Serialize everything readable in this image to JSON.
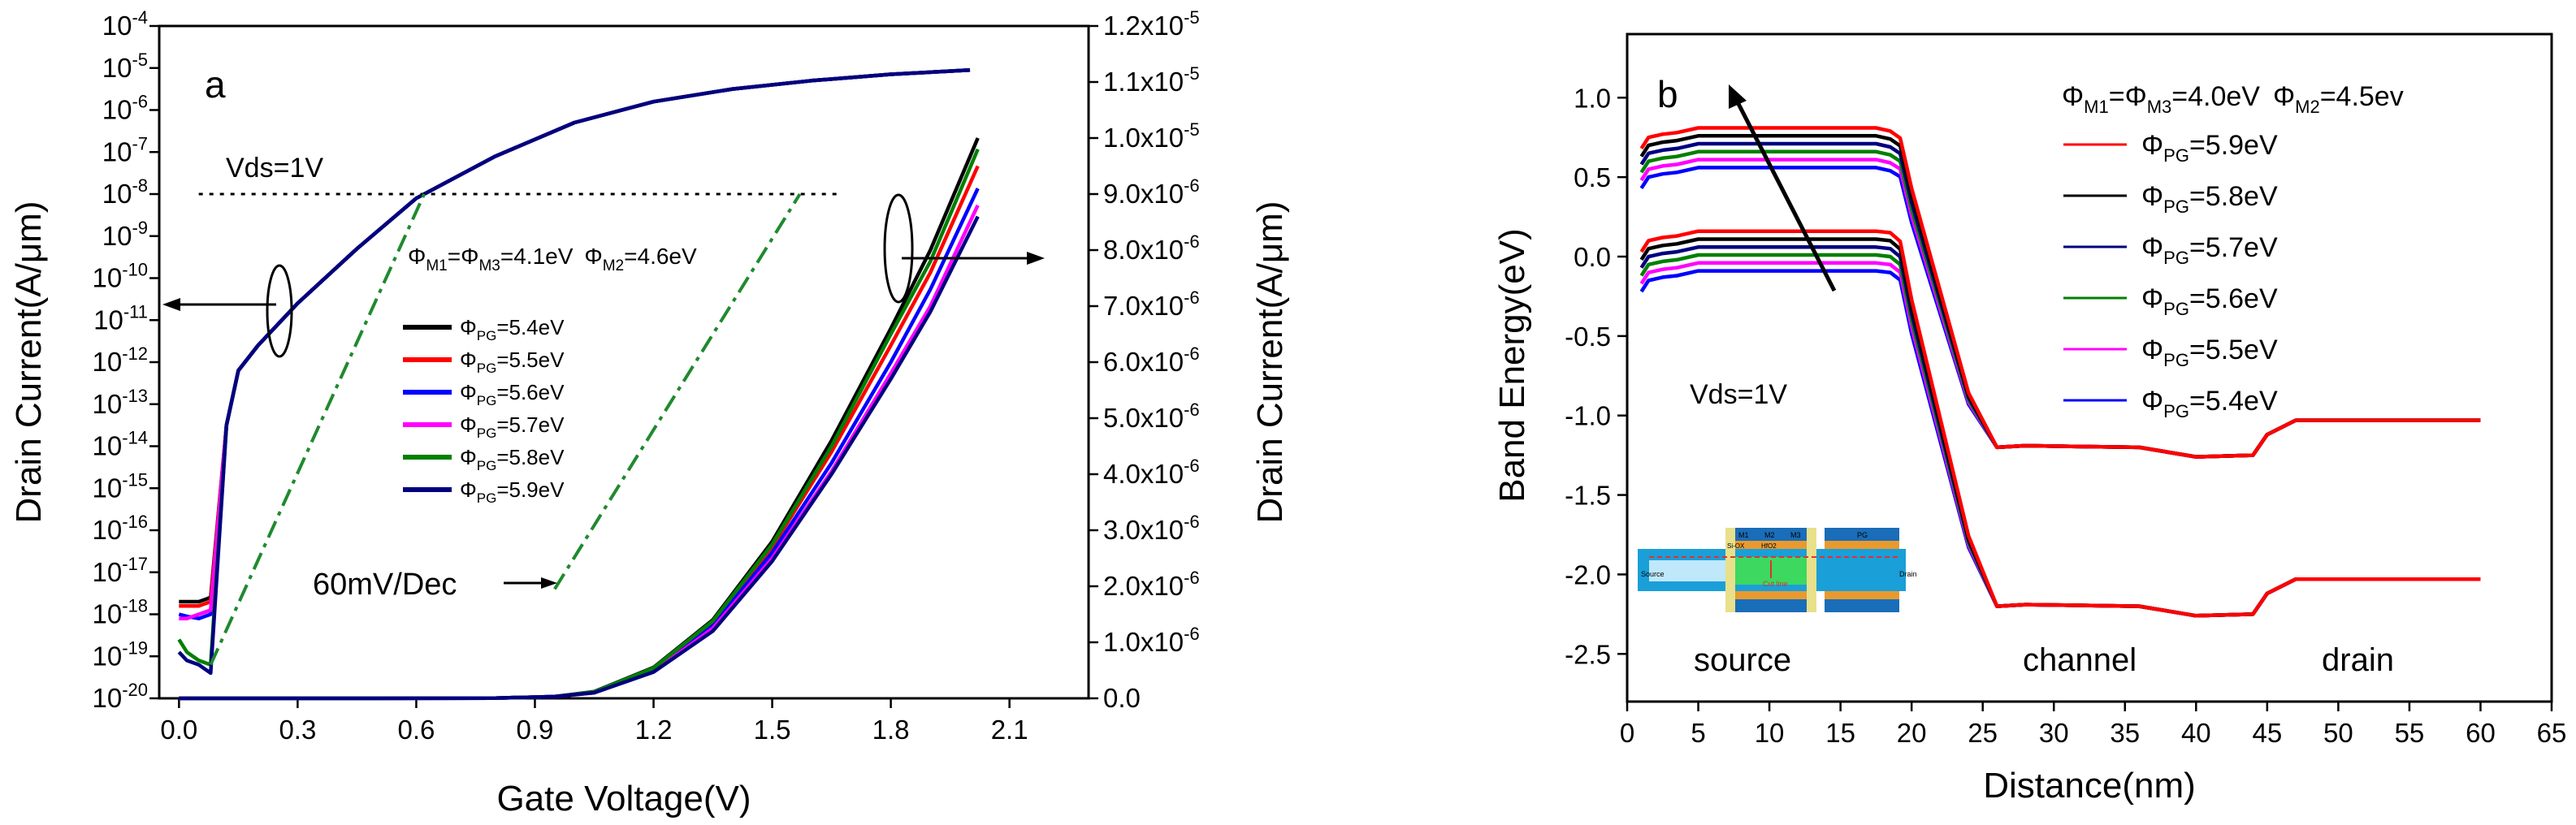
{
  "chart_data": [
    {
      "panel": "a",
      "type": "line",
      "xlabel": "Gate Voltage(V)",
      "ylabel_left": "Drain Current(A/μm)",
      "ylabel_right": "Drain Current(A/μm)",
      "xlim": [
        -0.05,
        2.3
      ],
      "x_ticks": [
        "0.0",
        "0.3",
        "0.6",
        "0.9",
        "1.2",
        "1.5",
        "1.8",
        "2.1"
      ],
      "left_axis_scale": "log",
      "left_ylim_exponent": [
        -20,
        -4
      ],
      "left_tick_base": "10",
      "left_tick_exponents": [
        "-20",
        "-19",
        "-18",
        "-17",
        "-16",
        "-15",
        "-14",
        "-13",
        "-12",
        "-11",
        "-10",
        "-9",
        "-8",
        "-7",
        "-6",
        "-5",
        "-4"
      ],
      "right_ylim": [
        0,
        1.2e-05
      ],
      "right_ticks": [
        {
          "mant": "0.0",
          "exp": ""
        },
        {
          "mant": "1.0x10",
          "exp": "-6"
        },
        {
          "mant": "2.0x10",
          "exp": "-6"
        },
        {
          "mant": "3.0x10",
          "exp": "-6"
        },
        {
          "mant": "4.0x10",
          "exp": "-6"
        },
        {
          "mant": "5.0x10",
          "exp": "-6"
        },
        {
          "mant": "6.0x10",
          "exp": "-6"
        },
        {
          "mant": "7.0x10",
          "exp": "-6"
        },
        {
          "mant": "8.0x10",
          "exp": "-6"
        },
        {
          "mant": "9.0x10",
          "exp": "-6"
        },
        {
          "mant": "1.0x10",
          "exp": "-5"
        },
        {
          "mant": "1.1x10",
          "exp": "-5"
        },
        {
          "mant": "1.2x10",
          "exp": "-5"
        }
      ],
      "annotations": {
        "panel_label": "a",
        "vds": "Vds=1V",
        "work_function": {
          "phi": "Φ",
          "m1": "M1",
          "eq": "=",
          "m3": "M3",
          "val1": "=4.1eV",
          "m2": "M2",
          "val2": "=4.6eV"
        },
        "slope": "60mV/Dec"
      },
      "legend_prefix": "Φ",
      "legend_sub": "PG",
      "series": [
        {
          "name": "=5.4eV",
          "color": "#000000",
          "log_x": [
            0,
            0.02,
            0.05,
            0.08,
            0.12,
            0.15,
            0.2,
            0.3,
            0.45,
            0.6,
            0.8,
            1.0,
            1.2,
            1.4,
            1.6,
            1.8,
            2.0
          ],
          "log_y": [
            -17.7,
            -17.7,
            -17.7,
            -17.6,
            -13.5,
            -12.2,
            -11.6,
            -10.6,
            -9.3,
            -8.1,
            -7.1,
            -6.3,
            -5.8,
            -5.5,
            -5.3,
            -5.15,
            -5.05
          ],
          "lin_x": [
            0,
            0.5,
            0.8,
            0.95,
            1.05,
            1.2,
            1.35,
            1.5,
            1.65,
            1.8,
            1.9,
            2.02
          ],
          "lin_y": [
            0,
            0,
            5e-09,
            3e-08,
            1.2e-07,
            5.5e-07,
            1.4e-06,
            2.8e-06,
            4.6e-06,
            6.6e-06,
            8e-06,
            1e-05
          ]
        },
        {
          "name": "=5.5eV",
          "color": "#ff0000",
          "log_x": [
            0,
            0.02,
            0.05,
            0.08,
            0.12,
            0.15,
            0.2,
            0.3,
            0.45,
            0.6,
            0.8,
            1.0,
            1.2,
            1.4,
            1.6,
            1.8,
            2.0
          ],
          "log_y": [
            -17.8,
            -17.8,
            -17.8,
            -17.7,
            -13.5,
            -12.2,
            -11.6,
            -10.6,
            -9.3,
            -8.1,
            -7.1,
            -6.3,
            -5.8,
            -5.5,
            -5.3,
            -5.15,
            -5.05
          ],
          "lin_x": [
            0,
            0.5,
            0.8,
            0.95,
            1.05,
            1.2,
            1.35,
            1.5,
            1.65,
            1.8,
            1.9,
            2.02
          ],
          "lin_y": [
            0,
            0,
            5e-09,
            3e-08,
            1.1e-07,
            5.2e-07,
            1.35e-06,
            2.7e-06,
            4.4e-06,
            6.3e-06,
            7.6e-06,
            9.5e-06
          ]
        },
        {
          "name": "=5.6eV",
          "color": "#0000ff",
          "log_x": [
            0,
            0.02,
            0.05,
            0.08,
            0.12,
            0.15,
            0.2,
            0.3,
            0.45,
            0.6,
            0.8,
            1.0,
            1.2,
            1.4,
            1.6,
            1.8,
            2.0
          ],
          "log_y": [
            -18.0,
            -18.05,
            -18.1,
            -18.0,
            -13.5,
            -12.2,
            -11.6,
            -10.6,
            -9.3,
            -8.1,
            -7.1,
            -6.3,
            -5.8,
            -5.5,
            -5.3,
            -5.15,
            -5.05
          ],
          "lin_x": [
            0,
            0.5,
            0.8,
            0.95,
            1.05,
            1.2,
            1.35,
            1.5,
            1.65,
            1.8,
            1.9,
            2.02
          ],
          "lin_y": [
            0,
            0,
            5e-09,
            3e-08,
            1.05e-07,
            5e-07,
            1.3e-06,
            2.6e-06,
            4.2e-06,
            6e-06,
            7.3e-06,
            9.1e-06
          ]
        },
        {
          "name": "=5.7eV",
          "color": "#ff00ff",
          "log_x": [
            0,
            0.02,
            0.05,
            0.08,
            0.12,
            0.15,
            0.2,
            0.3,
            0.45,
            0.6,
            0.8,
            1.0,
            1.2,
            1.4,
            1.6,
            1.8,
            2.0
          ],
          "log_y": [
            -18.1,
            -18.1,
            -18.0,
            -17.9,
            -13.5,
            -12.2,
            -11.6,
            -10.6,
            -9.3,
            -8.1,
            -7.1,
            -6.3,
            -5.8,
            -5.5,
            -5.3,
            -5.15,
            -5.05
          ],
          "lin_x": [
            0,
            0.5,
            0.8,
            0.95,
            1.05,
            1.2,
            1.35,
            1.5,
            1.65,
            1.8,
            1.9,
            2.02
          ],
          "lin_y": [
            0,
            0,
            5e-09,
            3e-08,
            1e-07,
            4.8e-07,
            1.25e-06,
            2.5e-06,
            4.05e-06,
            5.8e-06,
            7e-06,
            8.8e-06
          ]
        },
        {
          "name": "=5.8eV",
          "color": "#008000",
          "log_x": [
            0,
            0.02,
            0.05,
            0.08,
            0.12,
            0.15,
            0.2,
            0.3,
            0.45,
            0.6,
            0.8,
            1.0,
            1.2,
            1.4,
            1.6,
            1.8,
            2.0
          ],
          "log_y": [
            -18.6,
            -18.9,
            -19.1,
            -19.2,
            -13.5,
            -12.2,
            -11.6,
            -10.6,
            -9.3,
            -8.1,
            -7.1,
            -6.3,
            -5.8,
            -5.5,
            -5.3,
            -5.15,
            -5.05
          ],
          "lin_x": [
            0,
            0.5,
            0.8,
            0.95,
            1.05,
            1.2,
            1.35,
            1.5,
            1.65,
            1.8,
            1.9,
            2.02
          ],
          "lin_y": [
            0,
            0,
            5e-09,
            3e-08,
            1.15e-07,
            5.4e-07,
            1.38e-06,
            2.75e-06,
            4.5e-06,
            6.5e-06,
            7.8e-06,
            9.8e-06
          ]
        },
        {
          "name": "=5.9eV",
          "color": "#000080",
          "log_x": [
            0,
            0.02,
            0.05,
            0.08,
            0.12,
            0.15,
            0.2,
            0.3,
            0.45,
            0.6,
            0.8,
            1.0,
            1.2,
            1.4,
            1.6,
            1.8,
            2.0
          ],
          "log_y": [
            -18.9,
            -19.1,
            -19.2,
            -19.4,
            -13.5,
            -12.2,
            -11.6,
            -10.6,
            -9.3,
            -8.1,
            -7.1,
            -6.3,
            -5.8,
            -5.5,
            -5.3,
            -5.15,
            -5.05
          ],
          "lin_x": [
            0,
            0.5,
            0.8,
            0.95,
            1.05,
            1.2,
            1.35,
            1.5,
            1.65,
            1.8,
            1.9,
            2.02
          ],
          "lin_y": [
            0,
            0,
            5e-09,
            3e-08,
            1e-07,
            4.7e-07,
            1.2e-06,
            2.45e-06,
            4e-06,
            5.7e-06,
            6.9e-06,
            8.6e-06
          ]
        }
      ],
      "reference_lines": {
        "hline_log": {
          "y_exp": -8,
          "x_from": 0.05,
          "x_to": 1.67
        },
        "slope_a": {
          "from": [
            0.08,
            -19.2
          ],
          "to": [
            0.62,
            -8.0
          ]
        },
        "slope_b": {
          "from": [
            0.95,
            -17.4
          ],
          "to": [
            1.57,
            -8.0
          ]
        }
      }
    },
    {
      "panel": "b",
      "type": "line",
      "xlabel": "Distance(nm)",
      "ylabel": "Band Energy(eV)",
      "xlim": [
        0,
        65
      ],
      "ylim": [
        -2.8,
        1.4
      ],
      "x_ticks": [
        "0",
        "5",
        "10",
        "15",
        "20",
        "25",
        "30",
        "35",
        "40",
        "45",
        "50",
        "55",
        "60",
        "65"
      ],
      "y_ticks": [
        "1.0",
        "0.5",
        "0.0",
        "-0.5",
        "-1.0",
        "-1.5",
        "-2.0",
        "-2.5"
      ],
      "annotations": {
        "panel_label": "b",
        "vds": "Vds=1V",
        "work_function": {
          "phi": "Φ",
          "m1": "M1",
          "eq": "=",
          "m3": "M3",
          "val1": "=4.0eV",
          "m2": "M2",
          "val2": "=4.5ev"
        },
        "regions": [
          "source",
          "channel",
          "drain"
        ]
      },
      "legend_prefix": "Φ",
      "legend_sub": "PG",
      "series": [
        {
          "name": "=5.9eV",
          "color": "#ff0000",
          "offset": 0.15
        },
        {
          "name": "=5.8eV",
          "color": "#000000",
          "offset": 0.1
        },
        {
          "name": "=5.7eV",
          "color": "#000080",
          "offset": 0.05
        },
        {
          "name": "=5.6eV",
          "color": "#008000",
          "offset": 0.0
        },
        {
          "name": "=5.5eV",
          "color": "#ff00ff",
          "offset": -0.05
        },
        {
          "name": "=5.4eV",
          "color": "#0000ff",
          "offset": -0.1
        }
      ],
      "band_upper_base": {
        "x": [
          1,
          1.5,
          2.5,
          3.5,
          5,
          17.5,
          18.5,
          19.2,
          20,
          22,
          24,
          26,
          28,
          36,
          40,
          44,
          45,
          47,
          60
        ],
        "y": [
          0.53,
          0.6,
          0.62,
          0.63,
          0.66,
          0.66,
          0.64,
          0.6,
          0.3,
          -0.3,
          -0.9,
          -1.2,
          -1.19,
          -1.2,
          -1.26,
          -1.25,
          -1.12,
          -1.03,
          -1.03
        ]
      },
      "band_lower_base": {
        "x": [
          1,
          1.5,
          2.5,
          3.5,
          5,
          17.5,
          18.5,
          19.2,
          20,
          22,
          24,
          26,
          28,
          36,
          40,
          44,
          45,
          47,
          60
        ],
        "y": [
          -0.12,
          -0.05,
          -0.03,
          -0.02,
          0.01,
          0.01,
          0.0,
          -0.05,
          -0.4,
          -1.1,
          -1.8,
          -2.2,
          -2.19,
          -2.2,
          -2.26,
          -2.25,
          -2.12,
          -2.03,
          -2.03
        ]
      },
      "inset_labels": {
        "source": "Source",
        "drain": "Drain",
        "channel": "Cut line",
        "m1": "M1",
        "m2": "M2",
        "m3": "M3",
        "pg": "PG",
        "hfo": "HfO2",
        "si": "Si-OX"
      }
    }
  ]
}
